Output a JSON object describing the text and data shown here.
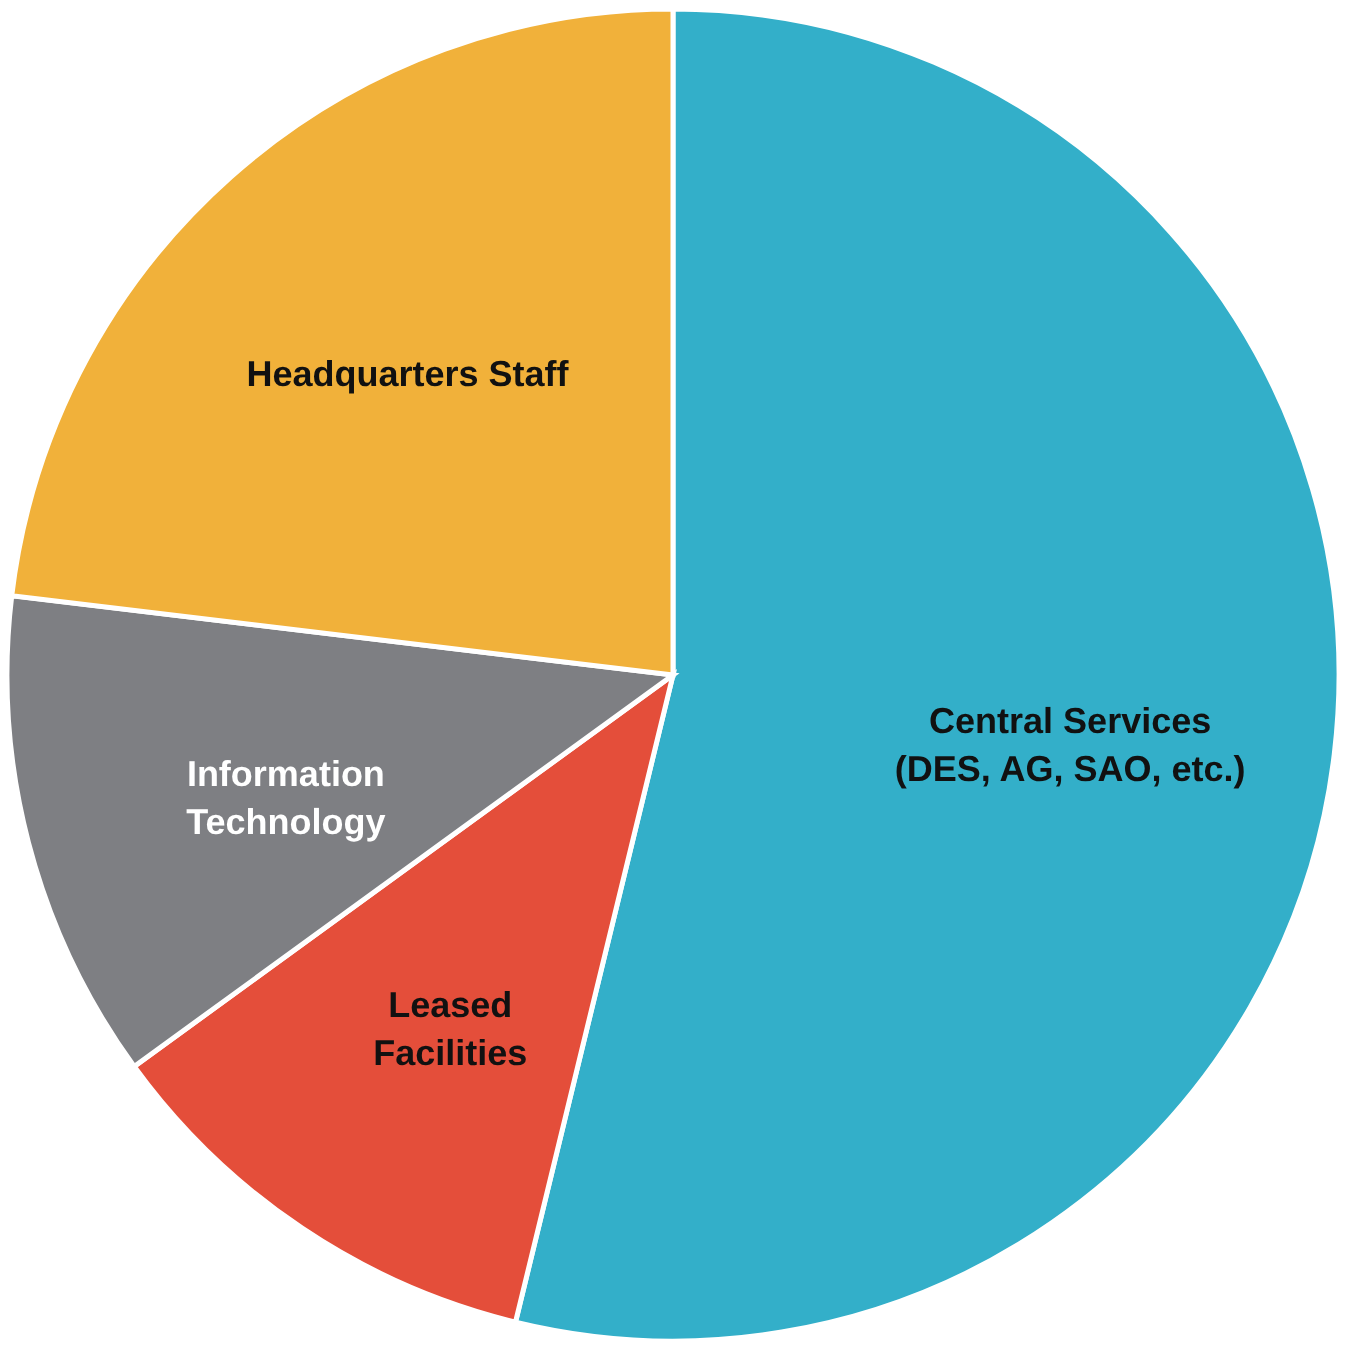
{
  "chart_data": {
    "type": "pie",
    "categories": [
      "Central Services\n(DES, AG, SAO, etc.)",
      "Leased\nFacilities",
      "Information\nTechnology",
      "Headquarters Staff"
    ],
    "values": [
      53.8,
      11.2,
      11.9,
      23.1
    ],
    "colors": [
      "#33afc9",
      "#e44e3a",
      "#7e7f83",
      "#f1b13a"
    ]
  }
}
